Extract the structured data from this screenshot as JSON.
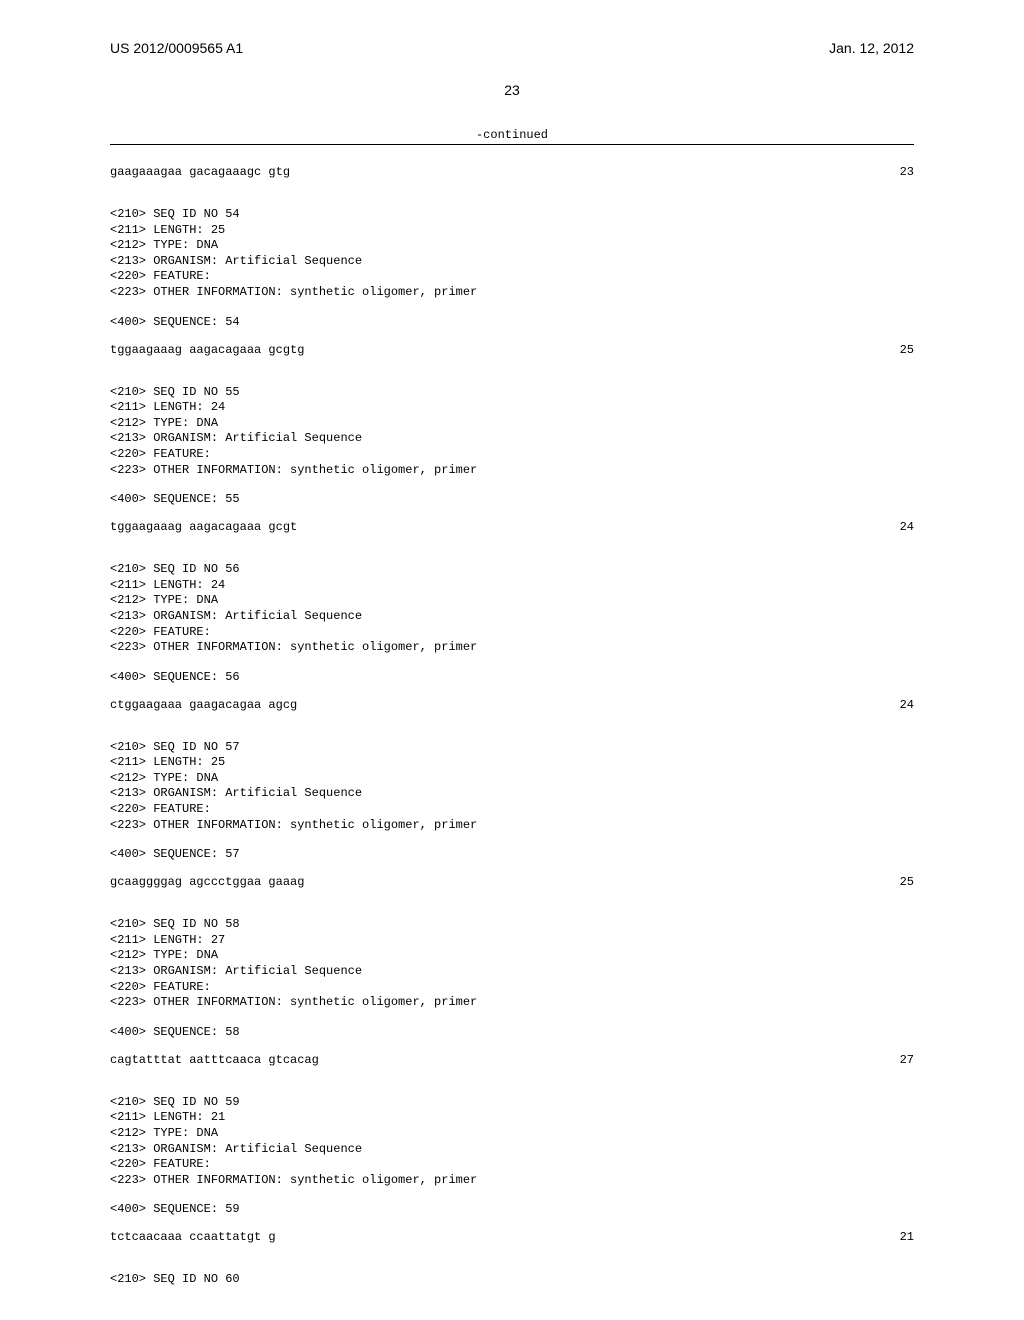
{
  "header": {
    "left": "US 2012/0009565 A1",
    "right": "Jan. 12, 2012"
  },
  "page_number": "23",
  "continued": "-continued",
  "top_sequence": {
    "text": "gaagaaagaa gacagaaagc gtg",
    "length": "23"
  },
  "blocks": [
    {
      "id": "54",
      "len": "25",
      "type": "DNA",
      "organism": "Artificial Sequence",
      "other": "synthetic oligomer, primer",
      "seq_text": "tggaagaaag aagacagaaa gcgtg",
      "seq_len": "25"
    },
    {
      "id": "55",
      "len": "24",
      "type": "DNA",
      "organism": "Artificial Sequence",
      "other": "synthetic oligomer, primer",
      "seq_text": "tggaagaaag aagacagaaa gcgt",
      "seq_len": "24"
    },
    {
      "id": "56",
      "len": "24",
      "type": "DNA",
      "organism": "Artificial Sequence",
      "other": "synthetic oligomer, primer",
      "seq_text": "ctggaagaaa gaagacagaa agcg",
      "seq_len": "24"
    },
    {
      "id": "57",
      "len": "25",
      "type": "DNA",
      "organism": "Artificial Sequence",
      "other": "synthetic oligomer, primer",
      "seq_text": "gcaaggggag agccctggaa gaaag",
      "seq_len": "25"
    },
    {
      "id": "58",
      "len": "27",
      "type": "DNA",
      "organism": "Artificial Sequence",
      "other": "synthetic oligomer, primer",
      "seq_text": "cagtatttat aatttcaaca gtcacag",
      "seq_len": "27"
    },
    {
      "id": "59",
      "len": "21",
      "type": "DNA",
      "organism": "Artificial Sequence",
      "other": "synthetic oligomer, primer",
      "seq_text": "tctcaacaaa ccaattatgt g",
      "seq_len": "21"
    }
  ],
  "tail": {
    "id": "60"
  },
  "meta_labels": {
    "l210": "<210> SEQ ID NO ",
    "l211": "<211> LENGTH: ",
    "l212": "<212> TYPE: ",
    "l213": "<213> ORGANISM: ",
    "l220": "<220> FEATURE:",
    "l223": "<223> OTHER INFORMATION: ",
    "l400": "<400> SEQUENCE: "
  },
  "colors": {
    "text": "#000000",
    "background": "#ffffff"
  },
  "fonts": {
    "mono": "Courier New",
    "sans": "Arial",
    "body_size_pt": 9,
    "header_size_pt": 11
  }
}
